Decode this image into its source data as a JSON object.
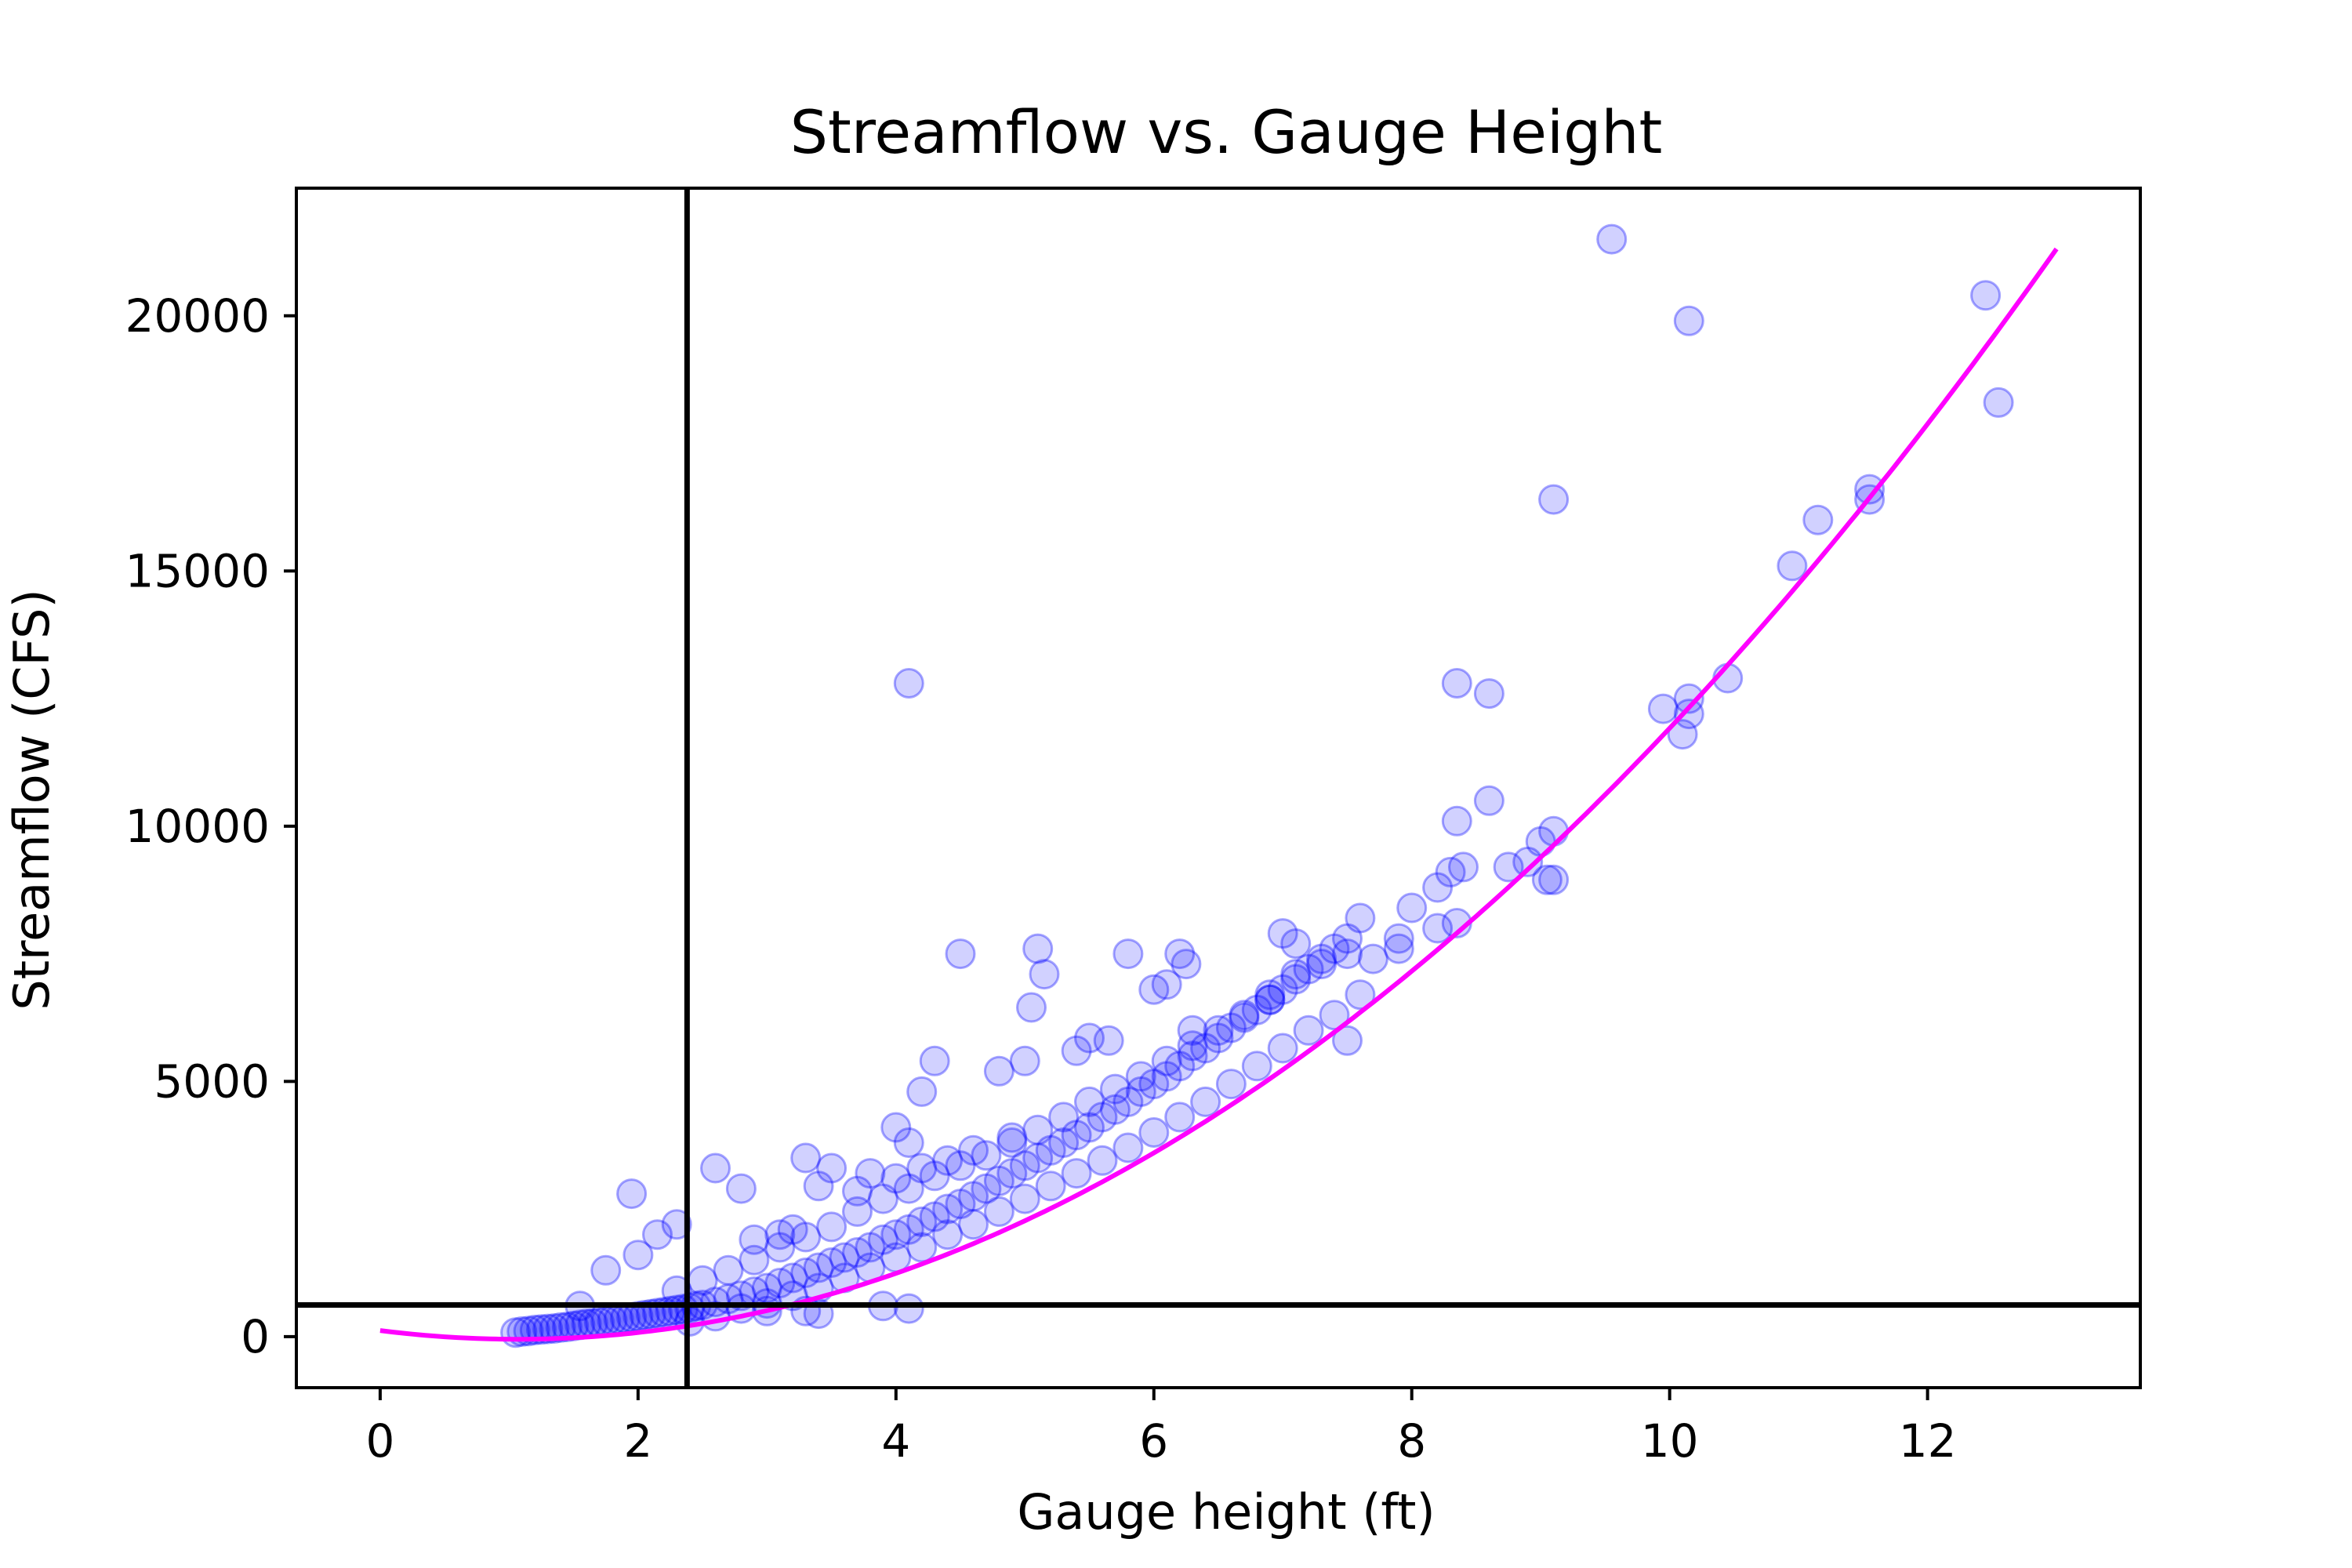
{
  "chart_data": {
    "type": "scatter",
    "title": "Streamflow vs. Gauge Height",
    "xlabel": "Gauge height (ft)",
    "ylabel": "Streamflow (CFS)",
    "xlim": [
      -0.65,
      13.65
    ],
    "ylim": [
      -1000,
      22500
    ],
    "x_ticks": [
      0,
      2,
      4,
      6,
      8,
      10,
      12
    ],
    "y_ticks": [
      0,
      5000,
      10000,
      15000,
      20000
    ],
    "grid": false,
    "legend": "none",
    "reference_lines": {
      "vertical_x": 2.38,
      "horizontal_y": 620
    },
    "colors": {
      "points": "#0000ff",
      "fit_curve": "#ff00ff",
      "reference_lines": "#000000"
    },
    "fit_curve": {
      "model": "quadratic",
      "coefficients": [
        120,
        -320,
        150
      ],
      "x_range": [
        0,
        13
      ]
    },
    "series": [
      {
        "kind": "scatter",
        "points": [
          [
            1.05,
            80
          ],
          [
            1.1,
            100
          ],
          [
            1.15,
            110
          ],
          [
            1.2,
            130
          ],
          [
            1.25,
            140
          ],
          [
            1.3,
            150
          ],
          [
            1.35,
            160
          ],
          [
            1.4,
            180
          ],
          [
            1.45,
            190
          ],
          [
            1.5,
            210
          ],
          [
            1.55,
            230
          ],
          [
            1.6,
            250
          ],
          [
            1.65,
            260
          ],
          [
            1.7,
            280
          ],
          [
            1.75,
            300
          ],
          [
            1.8,
            320
          ],
          [
            1.85,
            340
          ],
          [
            1.9,
            360
          ],
          [
            1.95,
            380
          ],
          [
            2.0,
            400
          ],
          [
            2.05,
            420
          ],
          [
            2.1,
            440
          ],
          [
            2.15,
            460
          ],
          [
            2.2,
            480
          ],
          [
            2.25,
            500
          ],
          [
            2.3,
            520
          ],
          [
            2.35,
            540
          ],
          [
            2.4,
            560
          ],
          [
            2.45,
            600
          ],
          [
            2.5,
            620
          ],
          [
            2.6,
            680
          ],
          [
            2.7,
            740
          ],
          [
            2.8,
            800
          ],
          [
            2.9,
            880
          ],
          [
            3.0,
            950
          ],
          [
            3.1,
            1050
          ],
          [
            3.2,
            1150
          ],
          [
            3.3,
            1250
          ],
          [
            3.4,
            1350
          ],
          [
            3.5,
            1450
          ],
          [
            3.6,
            1550
          ],
          [
            3.7,
            1650
          ],
          [
            3.8,
            1750
          ],
          [
            3.9,
            1900
          ],
          [
            4.0,
            2000
          ],
          [
            4.1,
            2100
          ],
          [
            4.2,
            2250
          ],
          [
            4.3,
            2350
          ],
          [
            4.4,
            2500
          ],
          [
            4.5,
            2600
          ],
          [
            4.6,
            2750
          ],
          [
            4.7,
            2900
          ],
          [
            4.8,
            3050
          ],
          [
            4.9,
            3200
          ],
          [
            5.0,
            3350
          ],
          [
            5.1,
            3500
          ],
          [
            5.2,
            3650
          ],
          [
            5.3,
            3800
          ],
          [
            5.4,
            3950
          ],
          [
            5.5,
            4100
          ],
          [
            5.6,
            4300
          ],
          [
            5.7,
            4450
          ],
          [
            5.8,
            4600
          ],
          [
            5.9,
            4800
          ],
          [
            6.0,
            4950
          ],
          [
            6.1,
            5100
          ],
          [
            6.2,
            5300
          ],
          [
            6.3,
            5500
          ],
          [
            6.4,
            5650
          ],
          [
            6.5,
            5850
          ],
          [
            6.6,
            6050
          ],
          [
            6.7,
            6250
          ],
          [
            6.8,
            6400
          ],
          [
            6.9,
            6600
          ],
          [
            7.0,
            6800
          ],
          [
            7.1,
            7000
          ],
          [
            7.2,
            7200
          ],
          [
            7.3,
            7400
          ],
          [
            7.4,
            7600
          ],
          [
            7.5,
            7800
          ],
          [
            2.3,
            900
          ],
          [
            2.5,
            1100
          ],
          [
            2.7,
            1300
          ],
          [
            2.9,
            1500
          ],
          [
            3.1,
            1750
          ],
          [
            3.3,
            1950
          ],
          [
            3.5,
            2150
          ],
          [
            3.7,
            2450
          ],
          [
            3.9,
            2700
          ],
          [
            4.1,
            2900
          ],
          [
            4.3,
            3150
          ],
          [
            4.5,
            3350
          ],
          [
            4.7,
            3550
          ],
          [
            4.9,
            3800
          ],
          [
            5.1,
            4050
          ],
          [
            5.3,
            4300
          ],
          [
            5.5,
            4600
          ],
          [
            5.7,
            4850
          ],
          [
            5.9,
            5100
          ],
          [
            6.1,
            5400
          ],
          [
            6.3,
            5700
          ],
          [
            6.5,
            6000
          ],
          [
            6.7,
            6300
          ],
          [
            6.9,
            6700
          ],
          [
            7.1,
            7100
          ],
          [
            7.3,
            7300
          ],
          [
            7.5,
            7500
          ],
          [
            2.4,
            300
          ],
          [
            2.6,
            400
          ],
          [
            2.8,
            550
          ],
          [
            3.0,
            650
          ],
          [
            3.2,
            800
          ],
          [
            3.4,
            950
          ],
          [
            3.6,
            1150
          ],
          [
            3.8,
            1350
          ],
          [
            4.0,
            1550
          ],
          [
            4.2,
            1750
          ],
          [
            4.4,
            2000
          ],
          [
            4.6,
            2200
          ],
          [
            4.8,
            2450
          ],
          [
            5.0,
            2700
          ],
          [
            5.2,
            2950
          ],
          [
            5.4,
            3200
          ],
          [
            5.6,
            3450
          ],
          [
            5.8,
            3700
          ],
          [
            6.0,
            4000
          ],
          [
            6.2,
            4300
          ],
          [
            6.4,
            4600
          ],
          [
            6.6,
            4950
          ],
          [
            6.8,
            5300
          ],
          [
            7.0,
            5650
          ],
          [
            7.2,
            6000
          ],
          [
            7.4,
            6300
          ],
          [
            7.6,
            6700
          ],
          [
            4.1,
            12800
          ],
          [
            4.5,
            7500
          ],
          [
            5.1,
            7600
          ],
          [
            5.15,
            7100
          ],
          [
            5.05,
            6450
          ],
          [
            5.8,
            7500
          ],
          [
            6.2,
            7500
          ],
          [
            6.25,
            7300
          ],
          [
            6.1,
            6900
          ],
          [
            6.0,
            6800
          ],
          [
            4.3,
            5400
          ],
          [
            4.8,
            5200
          ],
          [
            5.0,
            5400
          ],
          [
            5.4,
            5600
          ],
          [
            5.5,
            5850
          ],
          [
            5.65,
            5800
          ],
          [
            6.3,
            6000
          ],
          [
            4.2,
            4800
          ],
          [
            4.0,
            4100
          ],
          [
            4.1,
            3800
          ],
          [
            3.3,
            3500
          ],
          [
            3.5,
            3300
          ],
          [
            2.6,
            3300
          ],
          [
            2.8,
            2900
          ],
          [
            1.95,
            2800
          ],
          [
            2.15,
            2000
          ],
          [
            2.3,
            2200
          ],
          [
            1.75,
            1300
          ],
          [
            1.55,
            600
          ],
          [
            2.0,
            1600
          ],
          [
            3.4,
            2950
          ],
          [
            3.7,
            2850
          ],
          [
            3.8,
            3200
          ],
          [
            4.0,
            3100
          ],
          [
            4.2,
            3300
          ],
          [
            4.4,
            3450
          ],
          [
            4.6,
            3650
          ],
          [
            4.9,
            3900
          ],
          [
            4.1,
            550
          ],
          [
            3.9,
            600
          ],
          [
            3.4,
            450
          ],
          [
            3.3,
            500
          ],
          [
            3.0,
            500
          ],
          [
            2.9,
            1900
          ],
          [
            3.1,
            2000
          ],
          [
            3.2,
            2100
          ],
          [
            7.5,
            5800
          ],
          [
            7.0,
            7900
          ],
          [
            7.1,
            7700
          ],
          [
            7.6,
            8200
          ],
          [
            7.9,
            7600
          ],
          [
            8.0,
            8400
          ],
          [
            8.2,
            8000
          ],
          [
            8.35,
            8100
          ],
          [
            8.3,
            9100
          ],
          [
            8.2,
            8800
          ],
          [
            8.4,
            9200
          ],
          [
            8.35,
            10100
          ],
          [
            8.6,
            10500
          ],
          [
            8.75,
            9200
          ],
          [
            8.9,
            9300
          ],
          [
            9.0,
            9700
          ],
          [
            9.1,
            9900
          ],
          [
            9.05,
            8950
          ],
          [
            9.1,
            8950
          ],
          [
            8.35,
            12800
          ],
          [
            8.6,
            12600
          ],
          [
            9.1,
            16400
          ],
          [
            9.55,
            21500
          ],
          [
            10.15,
            19900
          ],
          [
            12.45,
            20400
          ],
          [
            12.55,
            18300
          ],
          [
            11.55,
            16400
          ],
          [
            11.55,
            16600
          ],
          [
            11.15,
            16000
          ],
          [
            10.95,
            15100
          ],
          [
            10.45,
            12900
          ],
          [
            10.15,
            12500
          ],
          [
            10.15,
            12200
          ],
          [
            9.95,
            12300
          ],
          [
            10.1,
            11800
          ],
          [
            6.9,
            6600
          ],
          [
            7.7,
            7400
          ],
          [
            7.9,
            7800
          ]
        ]
      }
    ]
  }
}
